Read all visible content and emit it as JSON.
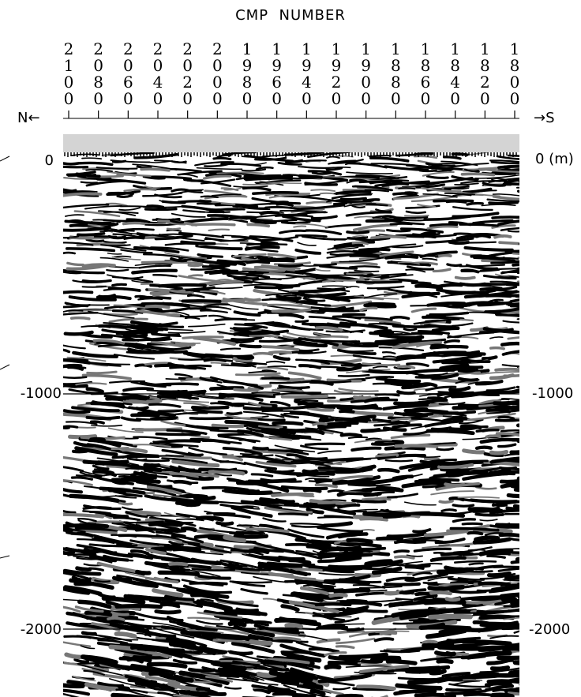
{
  "title": "CMP  NUMBER",
  "direction_left": "N←",
  "direction_right": "→S",
  "cmp_numbers": [
    "2100",
    "2080",
    "2060",
    "2040",
    "2020",
    "2000",
    "1980",
    "1960",
    "1940",
    "1920",
    "1900",
    "1880",
    "1860",
    "1840",
    "1820",
    "1800"
  ],
  "depth_left": [
    "0",
    "-1000",
    "-2000"
  ],
  "depth_right": [
    "0 (m)",
    "-1000",
    "-2000"
  ]
}
